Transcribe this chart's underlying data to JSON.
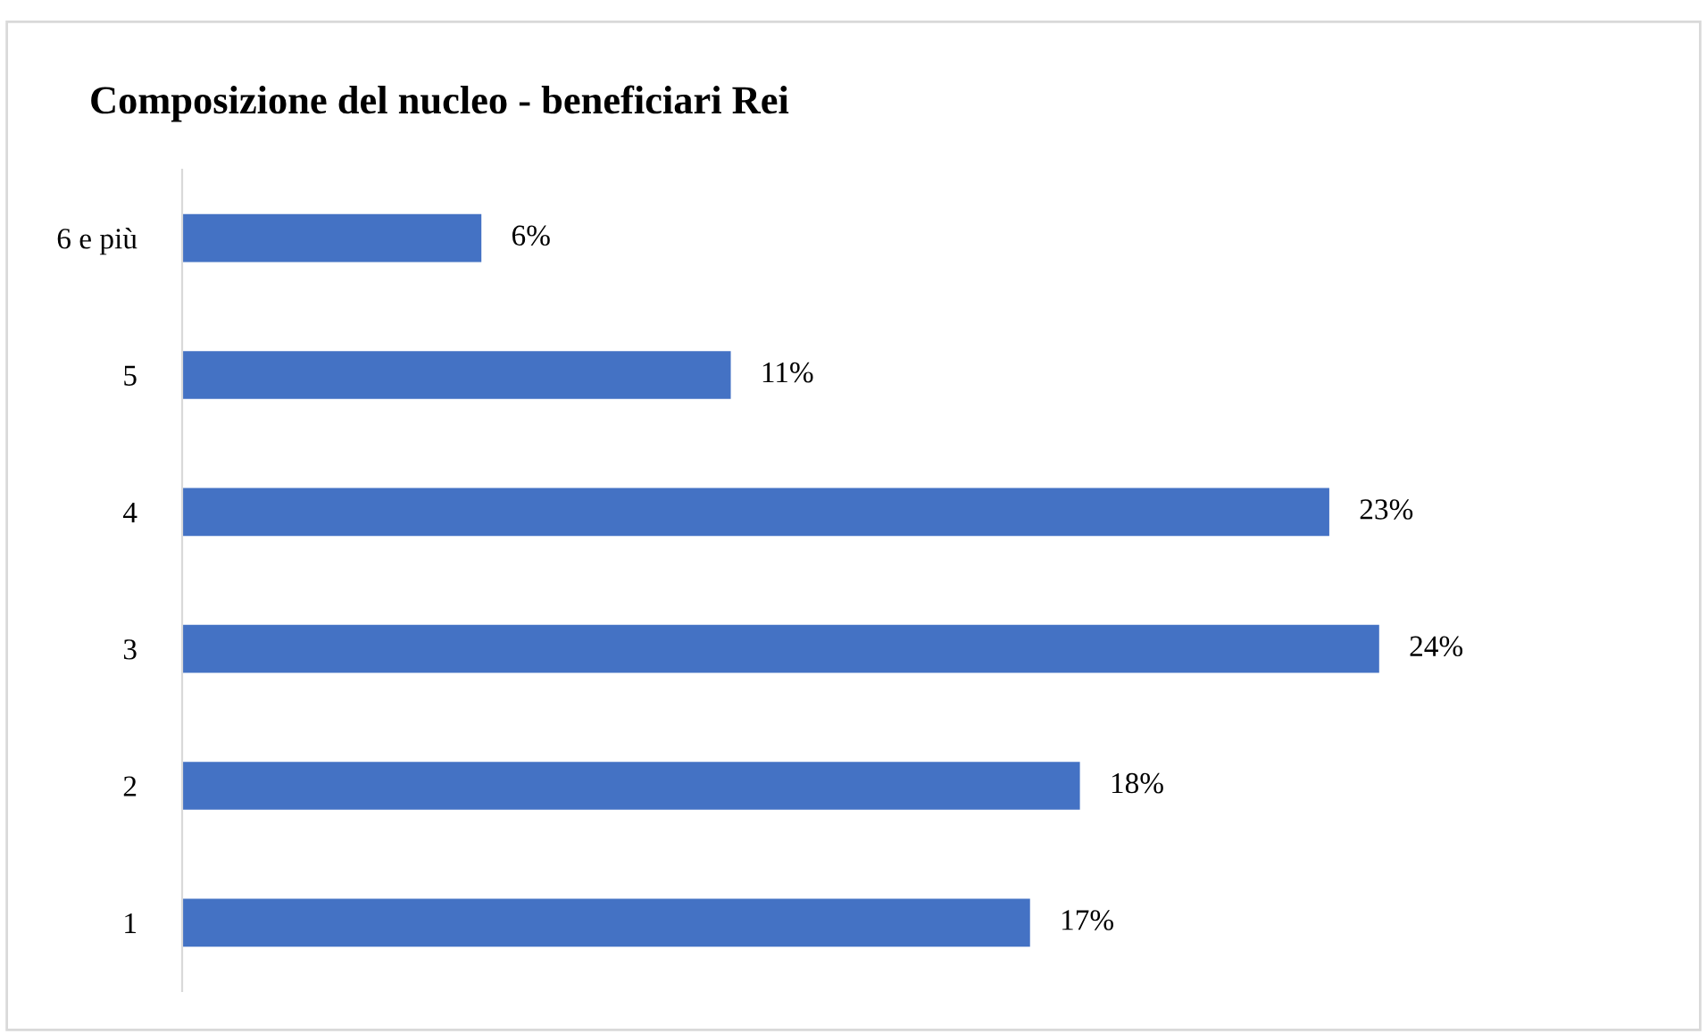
{
  "chart_data": {
    "type": "bar",
    "orientation": "horizontal",
    "title": "Composizione del nucleo - beneficiari Rei",
    "categories": [
      "6 e più",
      "5",
      "4",
      "3",
      "2",
      "1"
    ],
    "values": [
      6,
      11,
      23,
      24,
      18,
      17
    ],
    "value_labels": [
      "6%",
      "11%",
      "23%",
      "24%",
      "18%",
      "17%"
    ],
    "color": "#4472c4",
    "tick_labels": "y",
    "grid": false,
    "legend": false
  }
}
